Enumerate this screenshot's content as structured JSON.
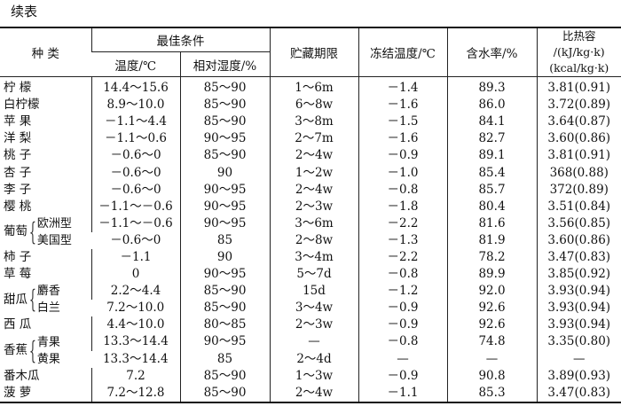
{
  "caption": "续表",
  "headers": {
    "species": "种 类",
    "best": "最佳条件",
    "temp": "温度/℃",
    "humidity": "相对湿度/%",
    "storage": "贮藏期限",
    "freezing": "冻结温度/℃",
    "water": "含水率/%",
    "heat1": "比热容",
    "heat2": "/(kJ/kg·k)",
    "heat3": "(kcal/kg·k)"
  },
  "rows": [
    {
      "name": "柠 檬",
      "temp": "14.4～15.6",
      "hum": "85～90",
      "store": "1～6m",
      "freeze": "－1.4",
      "water": "89.3",
      "heat": "3.81(0.91)"
    },
    {
      "name": "白柠檬",
      "temp": "8.9～10.0",
      "hum": "85～90",
      "store": "6～8w",
      "freeze": "－1.6",
      "water": "86.0",
      "heat": "3.72(0.89)"
    },
    {
      "name": "苹 果",
      "temp": "－1.1～4.4",
      "hum": "85～90",
      "store": "3～8m",
      "freeze": "－1.5",
      "water": "84.1",
      "heat": "3.64(0.87)"
    },
    {
      "name": "洋 梨",
      "temp": "－1.1～0.6",
      "hum": "90～95",
      "store": "2～7m",
      "freeze": "－1.6",
      "water": "82.7",
      "heat": "3.60(0.86)"
    },
    {
      "name": "桃 子",
      "temp": "－0.6～0",
      "hum": "85～90",
      "store": "2～4w",
      "freeze": "－0.9",
      "water": "89.1",
      "heat": "3.81(0.91)"
    },
    {
      "name": "杏 子",
      "temp": "－0.6～0",
      "hum": "90",
      "store": "1～2w",
      "freeze": "－1.0",
      "water": "85.4",
      "heat": "368(0.88)"
    },
    {
      "name": "李 子",
      "temp": "－0.6～0",
      "hum": "90～95",
      "store": "2～4w",
      "freeze": "－0.8",
      "water": "85.7",
      "heat": "372(0.89)"
    },
    {
      "name": "樱 桃",
      "temp": "－1.1～－0.6",
      "hum": "90～95",
      "store": "2～3w",
      "freeze": "－1.8",
      "water": "80.4",
      "heat": "3.51(0.84)"
    }
  ],
  "grape": {
    "name": "葡萄",
    "sub": [
      {
        "name": "欧洲型",
        "temp": "－1.1～－0.6",
        "hum": "90～95",
        "store": "3～6m",
        "freeze": "－2.2",
        "water": "81.6",
        "heat": "3.56(0.85)"
      },
      {
        "name": "美国型",
        "temp": "－0.6～0",
        "hum": "85",
        "store": "2～8w",
        "freeze": "－1.3",
        "water": "81.9",
        "heat": "3.60(0.86)"
      }
    ]
  },
  "rows2": [
    {
      "name": "柿 子",
      "temp": "－1.1",
      "hum": "90",
      "store": "3～4m",
      "freeze": "－2.2",
      "water": "78.2",
      "heat": "3.47(0.83)"
    },
    {
      "name": "草 莓",
      "temp": "0",
      "hum": "90～95",
      "store": "5～7d",
      "freeze": "－0.8",
      "water": "89.9",
      "heat": "3.85(0.92)"
    }
  ],
  "melon": {
    "name": "甜瓜",
    "sub": [
      {
        "name": "麝香",
        "temp": "2.2～4.4",
        "hum": "85～90",
        "store": "15d",
        "freeze": "－1.2",
        "water": "92.0",
        "heat": "3.93(0.94)"
      },
      {
        "name": "白兰",
        "temp": "7.2～10.0",
        "hum": "85～90",
        "store": "3～4w",
        "freeze": "－0.9",
        "water": "92.6",
        "heat": "3.93(0.94)"
      }
    ]
  },
  "rows3": [
    {
      "name": "西 瓜",
      "temp": "4.4～10.0",
      "hum": "80～85",
      "store": "2～3w",
      "freeze": "－0.9",
      "water": "92.6",
      "heat": "3.93(0.94)"
    }
  ],
  "banana": {
    "name": "香蕉",
    "sub": [
      {
        "name": "青果",
        "temp": "13.3～14.4",
        "hum": "90～95",
        "store": "—",
        "freeze": "－0.8",
        "water": "74.8",
        "heat": "3.35(0.80)"
      },
      {
        "name": "黄果",
        "temp": "13.3～14.4",
        "hum": "85",
        "store": "2～4d",
        "freeze": "—",
        "water": "—",
        "heat": "—"
      }
    ]
  },
  "rows4": [
    {
      "name": "番木瓜",
      "temp": "7.2",
      "hum": "85～90",
      "store": "1～3w",
      "freeze": "－0.9",
      "water": "90.8",
      "heat": "3.89(0.93)"
    },
    {
      "name": "菠 萝",
      "temp": "7.2～12.8",
      "hum": "85～90",
      "store": "2～4w",
      "freeze": "－1.1",
      "water": "85.3",
      "heat": "3.47(0.83)"
    }
  ]
}
